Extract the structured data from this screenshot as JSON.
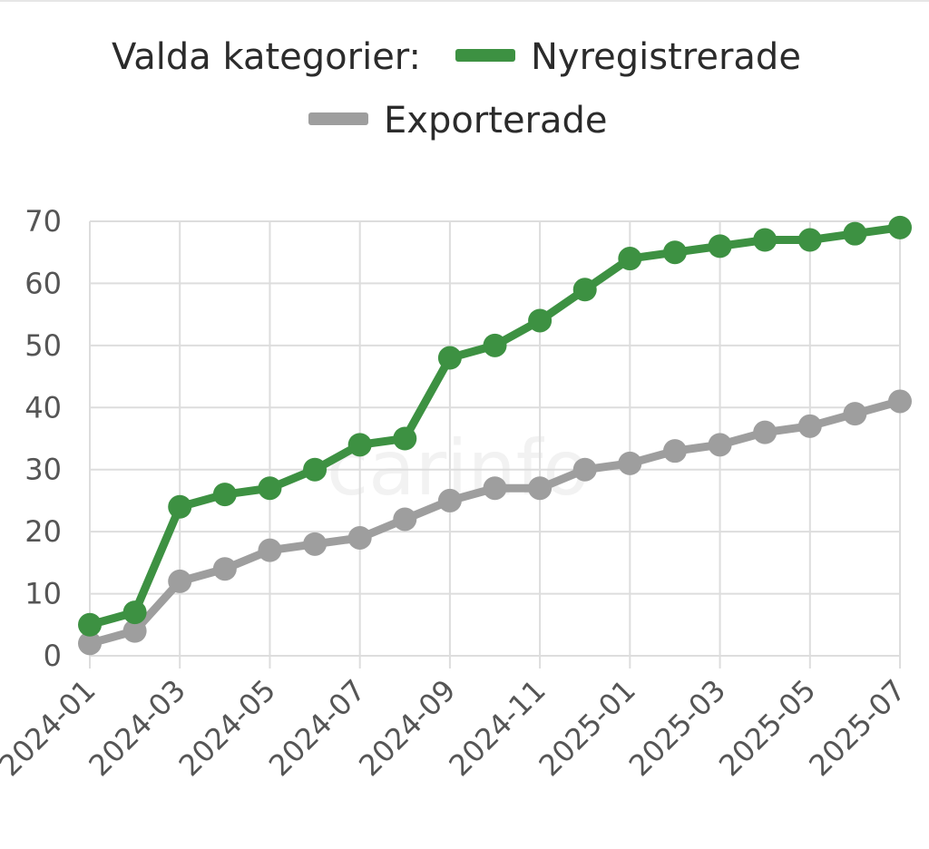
{
  "legend": {
    "prefix": "Valda kategorier:"
  },
  "watermark": "carinfo",
  "chart_data": {
    "type": "line",
    "x": [
      "2024-01",
      "2024-02",
      "2024-03",
      "2024-04",
      "2024-05",
      "2024-06",
      "2024-07",
      "2024-08",
      "2024-09",
      "2024-10",
      "2024-11",
      "2024-12",
      "2025-01",
      "2025-02",
      "2025-03",
      "2025-04",
      "2025-05",
      "2025-06",
      "2025-07"
    ],
    "x_tick_labels": [
      "2024-01",
      "2024-03",
      "2024-05",
      "2024-07",
      "2024-09",
      "2024-11",
      "2025-01",
      "2025-03",
      "2025-05",
      "2025-07"
    ],
    "y_ticks": [
      0,
      10,
      20,
      30,
      40,
      50,
      60,
      70
    ],
    "ylim": [
      0,
      70
    ],
    "grid": true,
    "legend_position": "top",
    "series": [
      {
        "name": "Nyregistrerade",
        "color": "#3d9142",
        "values": [
          5,
          7,
          24,
          26,
          27,
          30,
          34,
          35,
          48,
          50,
          54,
          59,
          64,
          65,
          66,
          67,
          67,
          68,
          69
        ]
      },
      {
        "name": "Exporterade",
        "color": "#9e9e9e",
        "values": [
          2,
          4,
          12,
          14,
          17,
          18,
          19,
          22,
          25,
          27,
          27,
          30,
          31,
          33,
          34,
          36,
          37,
          39,
          41
        ]
      }
    ]
  }
}
